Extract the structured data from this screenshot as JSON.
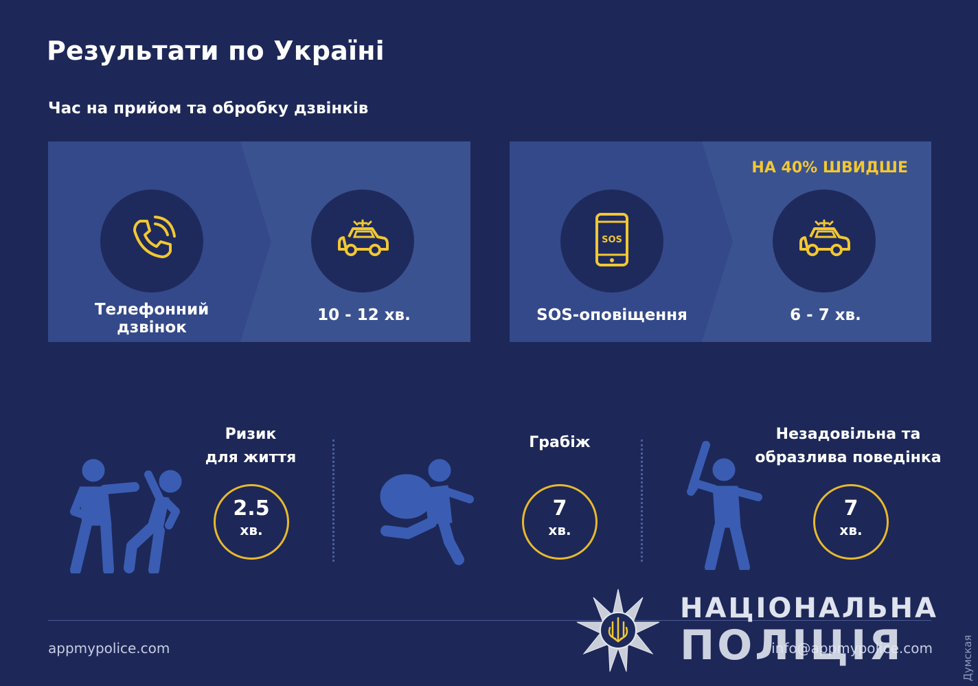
{
  "header": {
    "title": "Результати по Україні",
    "subtitle": "Час на прийом та обробку дзвінків"
  },
  "call_panels": [
    {
      "source_icon": "phone-icon",
      "source_label_line1": "Телефонний",
      "source_label_line2": "дзвінок",
      "response_icon": "police-car-icon",
      "response_time": "10 - 12 хв."
    },
    {
      "badge": "НА 40% ШВИДШЕ",
      "source_icon": "sos-phone-icon",
      "source_label": "SOS-оповіщення",
      "response_icon": "police-car-icon",
      "response_time": "6 - 7 хв."
    }
  ],
  "stats": [
    {
      "icon": "fight-icon",
      "label_line1": "Ризик",
      "label_line2": "для життя",
      "value": "2.5",
      "unit": "хв."
    },
    {
      "icon": "robber-icon",
      "label_line1": "Грабіж",
      "label_line2": "",
      "value": "7",
      "unit": "хв."
    },
    {
      "icon": "bat-attacker-icon",
      "label_line1": "Незадовільна та",
      "label_line2": "образлива поведінка",
      "value": "7",
      "unit": "хв."
    }
  ],
  "footer": {
    "left_url": "appmypolice.com",
    "right_email": "info@appmypolice.com",
    "logo_line1": "НАЦІОНАЛЬНА",
    "logo_line2": "ПОЛІЦІЯ",
    "watermark": "Думская"
  },
  "colors": {
    "background": "#1d2858",
    "panel": "#3b5290",
    "circle": "#1f2a5c",
    "accent_yellow": "#f2c832",
    "figure_blue": "#3a5db3"
  }
}
